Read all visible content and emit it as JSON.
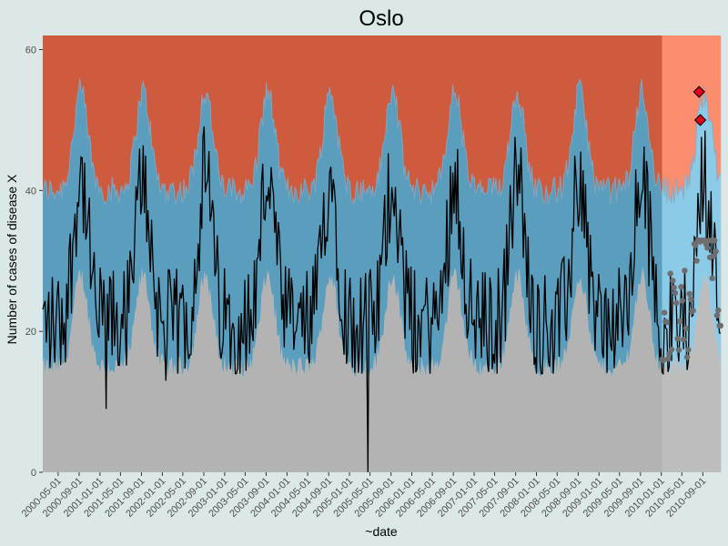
{
  "chart_data": {
    "type": "area",
    "title": "Oslo",
    "xlabel": "~date",
    "ylabel": "Number of cases of disease X",
    "ylim": [
      0,
      62
    ],
    "xlim": [
      "2000-02-01",
      "2010-12-20"
    ],
    "split_date": "2010-01-01",
    "y_ticks": [
      0,
      20,
      40,
      60
    ],
    "x_ticks": [
      "2000-05-01",
      "2000-09-01",
      "2001-01-01",
      "2001-05-01",
      "2001-09-01",
      "2002-01-01",
      "2002-05-01",
      "2002-09-01",
      "2003-01-01",
      "2003-05-01",
      "2003-09-01",
      "2004-01-01",
      "2004-05-01",
      "2004-09-01",
      "2005-01-01",
      "2005-05-01",
      "2005-09-01",
      "2006-01-01",
      "2006-05-01",
      "2006-09-01",
      "2007-01-01",
      "2007-05-01",
      "2007-09-01",
      "2008-01-01",
      "2008-05-01",
      "2008-09-01",
      "2009-01-01",
      "2009-05-01",
      "2009-09-01",
      "2010-01-01",
      "2010-05-01",
      "2010-09-01"
    ],
    "grid": false,
    "legend": "none",
    "seasonal_peaks": [
      "2000-09-10",
      "2001-09-10",
      "2002-09-10",
      "2003-09-10",
      "2004-09-10",
      "2005-09-10",
      "2006-09-10",
      "2007-09-10",
      "2008-09-10",
      "2009-09-10",
      "2010-09-10"
    ],
    "baseline_range": [
      17,
      30
    ],
    "band_upper_range": [
      40,
      54
    ],
    "outliers": [
      {
        "date": "2001-02-05",
        "value": 9
      },
      {
        "date": "2002-01-20",
        "value": 13
      },
      {
        "date": "2005-04-20",
        "value": 0
      }
    ],
    "alerts": [
      {
        "date": "2010-08-10",
        "value": 54
      },
      {
        "date": "2010-08-17",
        "value": 50
      }
    ],
    "colors": {
      "panel_bg": "#ccd7d6",
      "zone_low": "#b3b3b3",
      "zone_mid": "#5b9dbd",
      "zone_high": "#cf5b3f",
      "zone_low_forecast": "#bdbdbd",
      "zone_mid_forecast": "#8ccbe8",
      "zone_high_forecast": "#fb8c6e",
      "band_edge": "#7dadca",
      "line": "#000000",
      "forecast_points": "#6e6e6e",
      "alert_fill": "#e0001a"
    }
  }
}
